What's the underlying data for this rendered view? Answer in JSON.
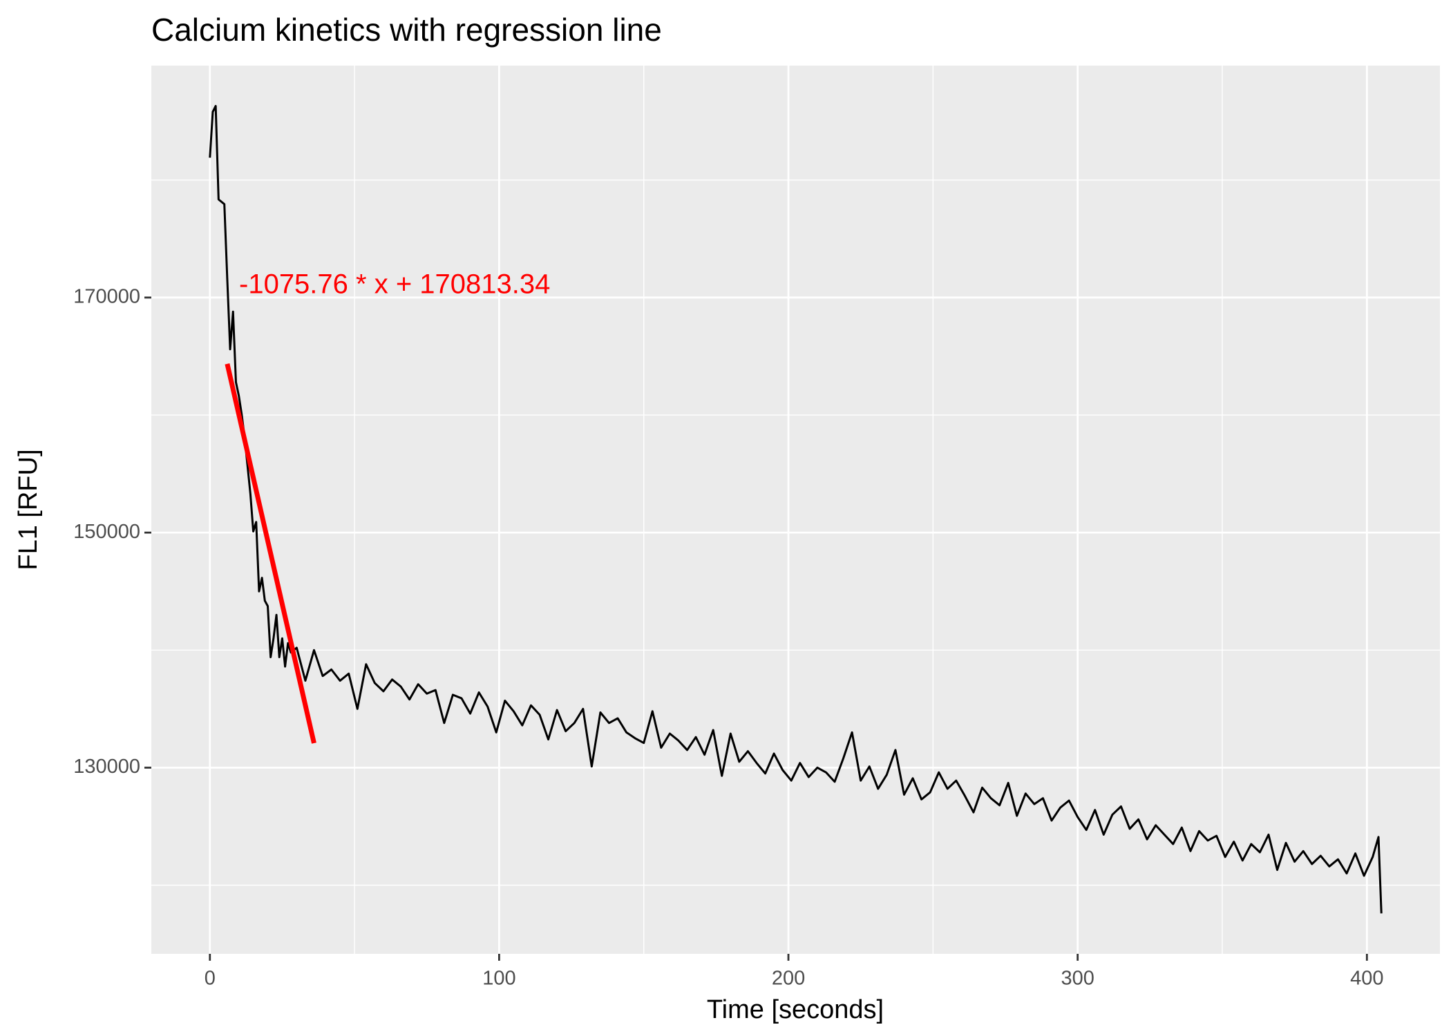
{
  "chart_data": {
    "type": "line",
    "title": "Calcium kinetics with regression line",
    "xlabel": "Time [seconds]",
    "ylabel": "FL1 [RFU]",
    "xlim": [
      -20.25,
      425.25
    ],
    "ylim": [
      114160,
      189735
    ],
    "xticks": [
      0,
      100,
      200,
      300,
      400
    ],
    "yticks": [
      130000,
      150000,
      170000
    ],
    "grid": true,
    "minor_grid": true,
    "panel_color": "#ebebeb",
    "annotation": {
      "text": "-1075.76 * x + 170813.34",
      "color": "#ff0000"
    },
    "series": [
      {
        "color": "#000000",
        "width": 3,
        "x": [
          0,
          1,
          2,
          3,
          5,
          6,
          7,
          8,
          9,
          10,
          11,
          12,
          13,
          14,
          15,
          16,
          17,
          18,
          19,
          20,
          21,
          22,
          23,
          24,
          25,
          26,
          27,
          28,
          30,
          33,
          36,
          39,
          42,
          45,
          48,
          51,
          54,
          57,
          60,
          63,
          66,
          69,
          72,
          75,
          78,
          81,
          84,
          87,
          90,
          93,
          96,
          99,
          102,
          105,
          108,
          111,
          114,
          117,
          120,
          123,
          126,
          129,
          132,
          135,
          138,
          141,
          144,
          147,
          150,
          153,
          156,
          159,
          162,
          165,
          168,
          171,
          174,
          177,
          180,
          183,
          186,
          189,
          192,
          195,
          198,
          201,
          204,
          207,
          210,
          213,
          216,
          219,
          222,
          225,
          228,
          231,
          234,
          237,
          240,
          243,
          246,
          249,
          252,
          255,
          258,
          261,
          264,
          267,
          270,
          273,
          276,
          279,
          282,
          285,
          288,
          291,
          294,
          297,
          300,
          303,
          306,
          309,
          312,
          315,
          318,
          321,
          324,
          327,
          330,
          333,
          336,
          339,
          342,
          345,
          348,
          351,
          354,
          357,
          360,
          363,
          366,
          369,
          372,
          375,
          378,
          381,
          384,
          387,
          390,
          393,
          396,
          399,
          402,
          404,
          405
        ],
        "values": [
          181900,
          185800,
          186300,
          178350,
          177950,
          171600,
          165600,
          168800,
          162800,
          161650,
          160050,
          158100,
          155700,
          153300,
          150100,
          150900,
          145000,
          146150,
          144200,
          143750,
          139400,
          141000,
          143000,
          139400,
          141000,
          138600,
          140600,
          139800,
          140200,
          137400,
          140000,
          137800,
          138350,
          137400,
          138000,
          135000,
          138800,
          137200,
          136500,
          137500,
          136900,
          135800,
          137100,
          136300,
          136600,
          133800,
          136200,
          135900,
          134600,
          136400,
          135200,
          133000,
          135700,
          134800,
          133600,
          135300,
          134500,
          132400,
          134900,
          133100,
          133800,
          135000,
          130100,
          134700,
          133800,
          134200,
          133000,
          132500,
          132100,
          134800,
          131700,
          132900,
          132300,
          131500,
          132600,
          131100,
          133200,
          129300,
          132900,
          130500,
          131400,
          130400,
          129500,
          131200,
          129800,
          128900,
          130400,
          129200,
          130000,
          129600,
          128800,
          130800,
          133000,
          128900,
          130100,
          128200,
          129400,
          131500,
          127700,
          129100,
          127300,
          127900,
          129600,
          128200,
          128900,
          127600,
          126200,
          128300,
          127400,
          126800,
          128700,
          125900,
          127800,
          126900,
          127400,
          125500,
          126600,
          127200,
          125800,
          124700,
          126400,
          124300,
          126000,
          126700,
          124800,
          125600,
          123900,
          125100,
          124300,
          123500,
          124900,
          122900,
          124600,
          123800,
          124200,
          122400,
          123700,
          122100,
          123500,
          122800,
          124300,
          121300,
          123600,
          122000,
          122900,
          121800,
          122500,
          121600,
          122200,
          121000,
          122700,
          120800,
          122400,
          124100,
          117600
        ]
      },
      {
        "color": "#ff0000",
        "width": 7,
        "x": [
          6,
          36
        ],
        "values": [
          164359,
          132086
        ]
      }
    ]
  }
}
